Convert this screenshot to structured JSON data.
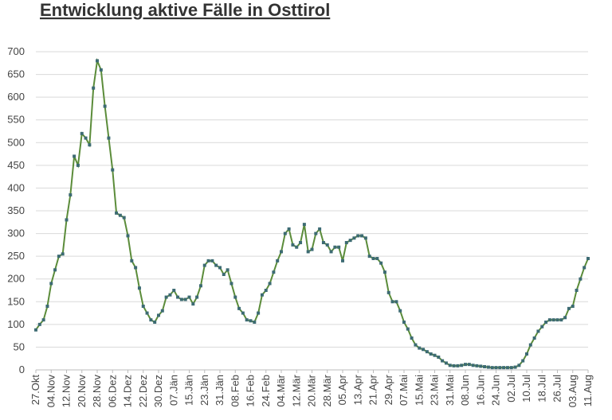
{
  "chart_data": {
    "type": "line",
    "title": "Entwicklung aktive Fälle in Osttirol",
    "categories": [
      "27.Okt",
      null,
      null,
      null,
      "04.Nov",
      null,
      null,
      null,
      "12.Nov",
      null,
      null,
      null,
      "20.Nov",
      null,
      null,
      null,
      "28.Nov",
      null,
      null,
      null,
      "06.Dez",
      null,
      null,
      null,
      "14.Dez",
      null,
      null,
      null,
      "22.Dez",
      null,
      null,
      null,
      "30.Dez",
      null,
      null,
      null,
      "07.Jän",
      null,
      null,
      null,
      "15.Jän",
      null,
      null,
      null,
      "23.Jän",
      null,
      null,
      null,
      "31.Jän",
      null,
      null,
      null,
      "08.Feb",
      null,
      null,
      null,
      "16.Feb",
      null,
      null,
      null,
      "24.Feb",
      null,
      null,
      null,
      "04.Mär",
      null,
      null,
      null,
      "12.Mär",
      null,
      null,
      null,
      "20.Mär",
      null,
      null,
      null,
      "28.Mär",
      null,
      null,
      null,
      "05.Apr",
      null,
      null,
      null,
      "13.Apr",
      null,
      null,
      null,
      "21.Apr",
      null,
      null,
      null,
      "29.Apr",
      null,
      null,
      null,
      "07.Mai",
      null,
      null,
      null,
      "15.Mai",
      null,
      null,
      null,
      "23.Mai",
      null,
      null,
      null,
      "31.Mai",
      null,
      null,
      null,
      "08.Jun",
      null,
      null,
      null,
      "16.Jun",
      null,
      null,
      null,
      "24.Jun",
      null,
      null,
      null,
      "02.Jul",
      null,
      null,
      null,
      "10.Jul",
      null,
      null,
      null,
      "18.Jul",
      null,
      null,
      null,
      "26.Jul",
      null,
      null,
      null,
      "03.Aug",
      null,
      null,
      null,
      "11.Aug"
    ],
    "series": [
      {
        "color": "#5b8c3a",
        "marker_color": "#3d6b73",
        "values": [
          88,
          100,
          110,
          140,
          190,
          220,
          250,
          255,
          330,
          385,
          470,
          450,
          520,
          510,
          495,
          620,
          680,
          660,
          580,
          510,
          440,
          345,
          340,
          335,
          295,
          240,
          225,
          180,
          140,
          125,
          110,
          105,
          120,
          130,
          160,
          165,
          175,
          160,
          155,
          155,
          160,
          145,
          160,
          185,
          230,
          240,
          240,
          230,
          225,
          210,
          220,
          190,
          160,
          135,
          125,
          110,
          108,
          105,
          125,
          165,
          175,
          190,
          215,
          240,
          260,
          300,
          310,
          275,
          270,
          280,
          320,
          260,
          265,
          300,
          310,
          280,
          275,
          260,
          270,
          270,
          240,
          280,
          285,
          290,
          295,
          295,
          290,
          250,
          245,
          245,
          235,
          215,
          170,
          150,
          150,
          130,
          105,
          90,
          70,
          55,
          48,
          45,
          40,
          35,
          32,
          28,
          20,
          15,
          10,
          9,
          9,
          10,
          12,
          12,
          10,
          9,
          8,
          7,
          6,
          5,
          5,
          5,
          5,
          5,
          5,
          6,
          10,
          20,
          35,
          55,
          70,
          85,
          95,
          105,
          110,
          110,
          110,
          110,
          115,
          135,
          140,
          175,
          200,
          225,
          245
        ]
      }
    ],
    "ylim": [
      0,
      700
    ],
    "yticks": [
      0,
      50,
      100,
      150,
      200,
      250,
      300,
      350,
      400,
      450,
      500,
      550,
      600,
      650,
      700
    ],
    "grid": true
  }
}
